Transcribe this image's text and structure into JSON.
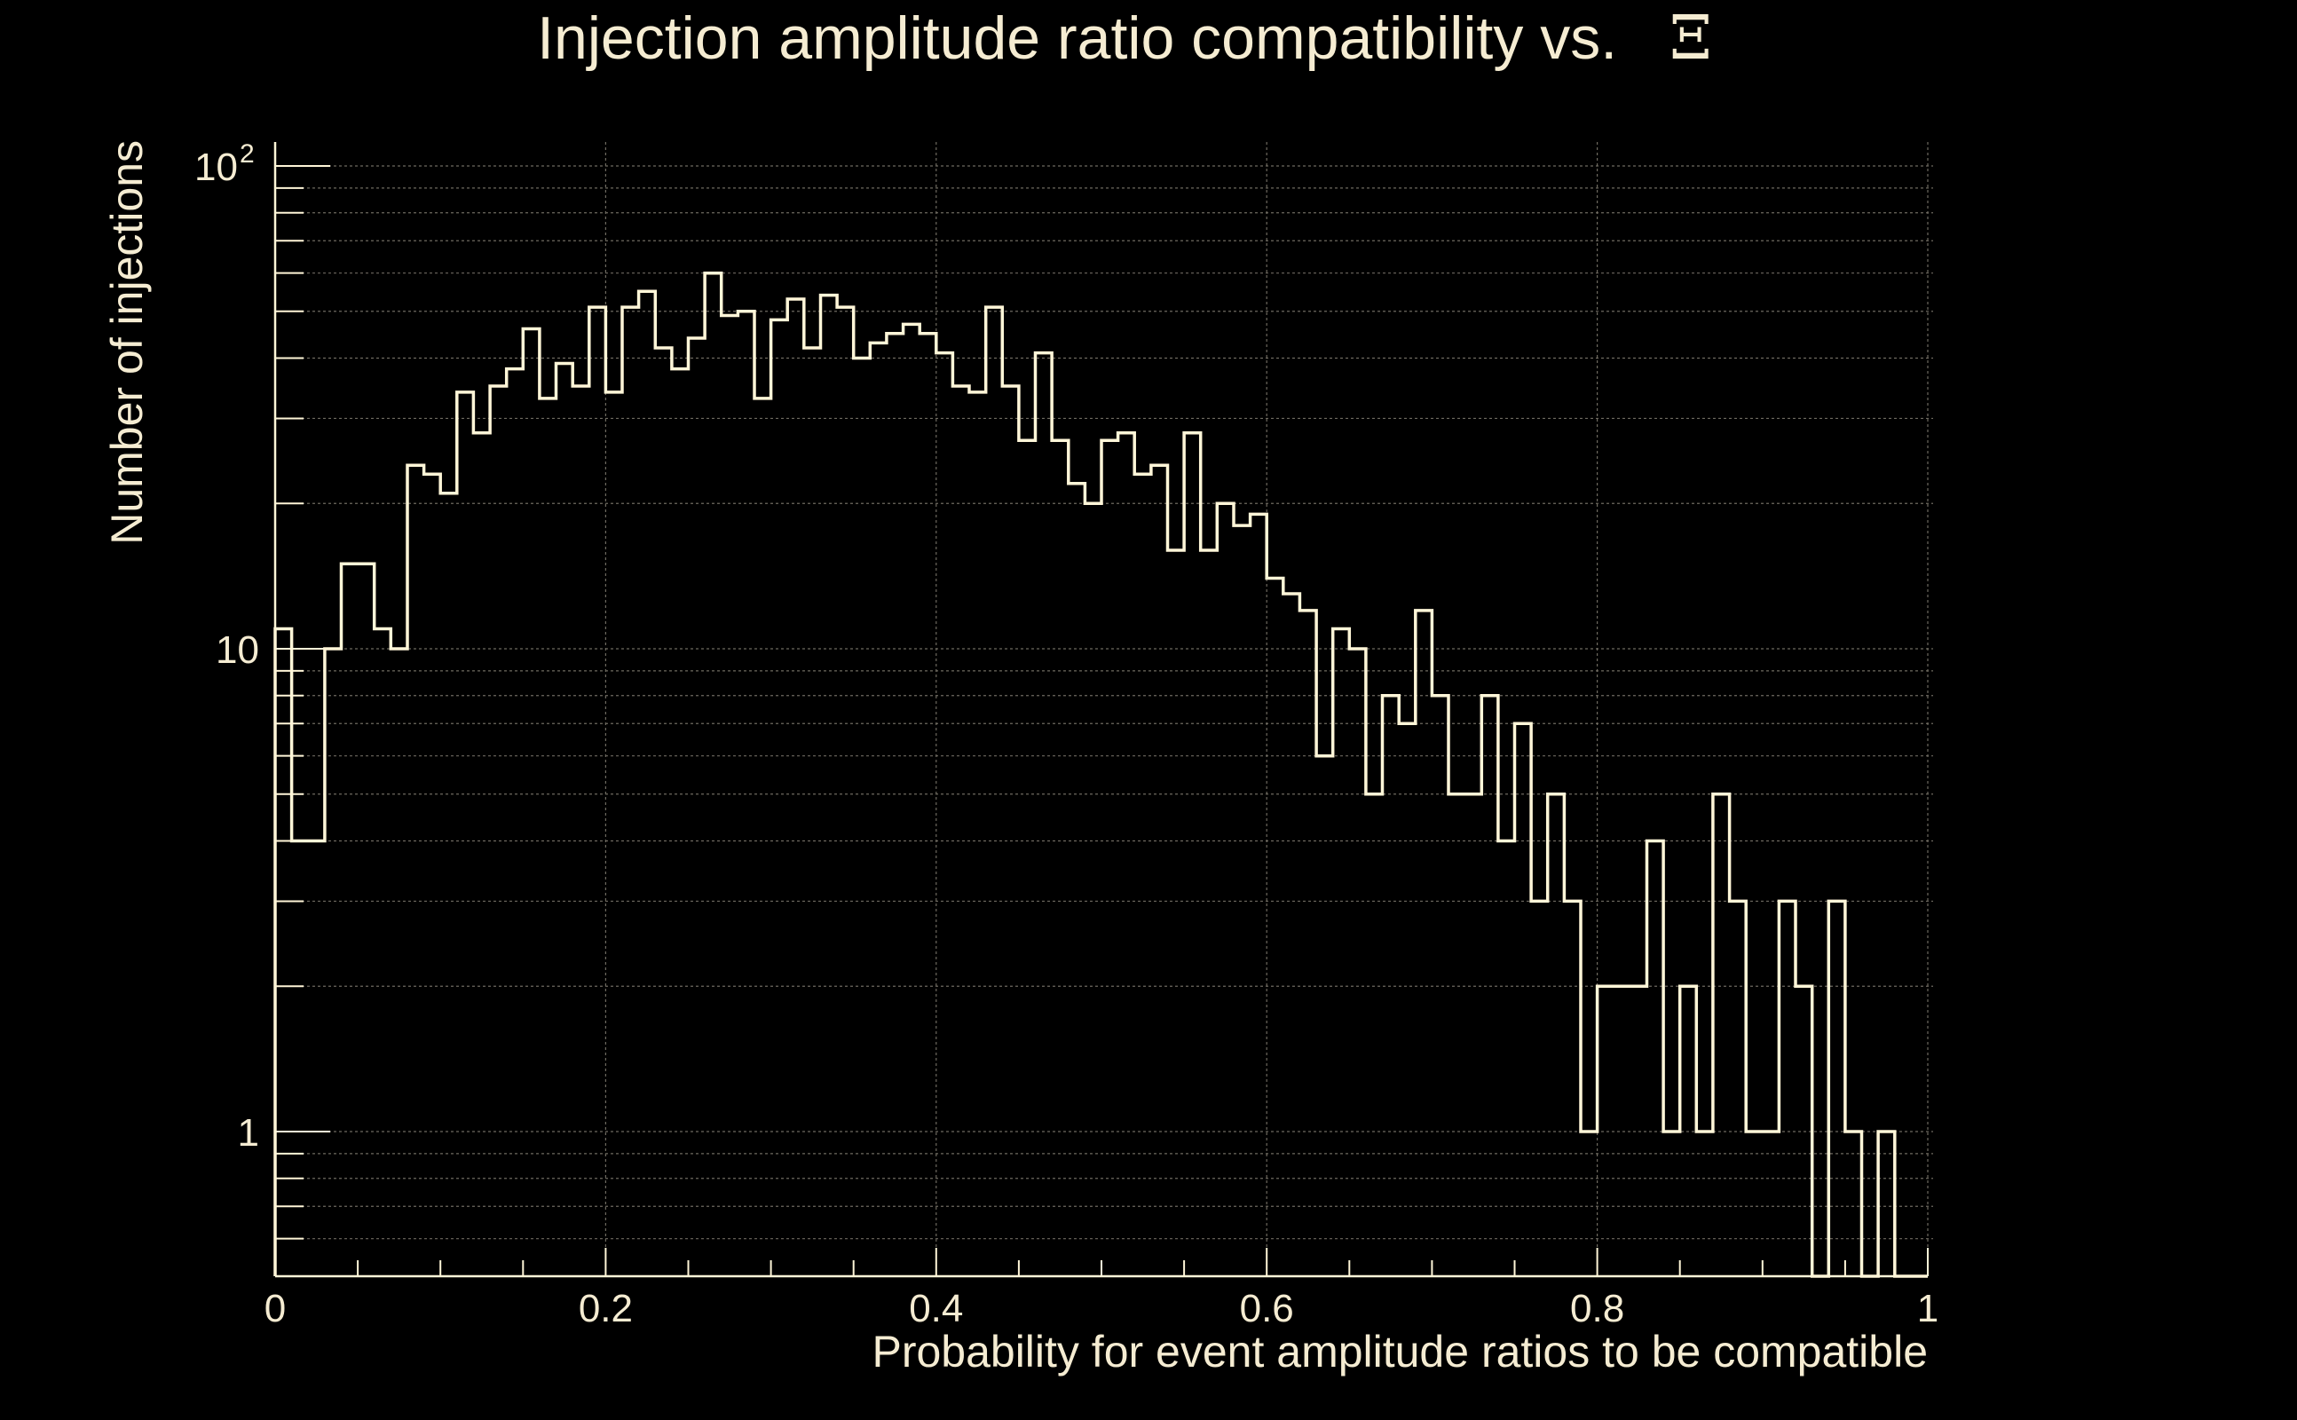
{
  "chart_data": {
    "type": "histogram",
    "title": "Injection amplitude ratio compatibility vs.",
    "title_symbol": "Ξ",
    "xlabel": "Probability for event amplitude ratios to be compatible",
    "ylabel": "Number of injections",
    "xlim": [
      0,
      1
    ],
    "ylim": [
      0.5,
      120
    ],
    "yscale": "log",
    "grid": true,
    "x_ticks": [
      "0",
      "0.2",
      "0.4",
      "0.6",
      "0.8",
      "1"
    ],
    "y_ticks": [
      {
        "value": 1,
        "label": "1"
      },
      {
        "value": 10,
        "label": "10"
      },
      {
        "value": 100,
        "label": "10",
        "exponent": "2"
      }
    ],
    "bin_width": 0.01,
    "counts": [
      11,
      4,
      4,
      10,
      15,
      15,
      11,
      10,
      24,
      23,
      21,
      34,
      28,
      35,
      38,
      46,
      33,
      39,
      35,
      51,
      34,
      51,
      55,
      42,
      38,
      44,
      60,
      49,
      50,
      33,
      48,
      53,
      42,
      54,
      51,
      40,
      43,
      45,
      47,
      45,
      41,
      35,
      34,
      51,
      35,
      27,
      41,
      27,
      22,
      20,
      27,
      28,
      23,
      24,
      16,
      28,
      16,
      20,
      18,
      19,
      14,
      13,
      12,
      6,
      11,
      10,
      5,
      8,
      7,
      12,
      8,
      5,
      5,
      8,
      4,
      7,
      3,
      5,
      3,
      1,
      2,
      2,
      2,
      4,
      1,
      2,
      1,
      5,
      3,
      1,
      1,
      3,
      2,
      0,
      3,
      1,
      0,
      1,
      0,
      0
    ],
    "line_color": "#fff6d8",
    "grid_color": "#6e6a60",
    "text_color": "#f5ecd2",
    "background": "#000000"
  }
}
